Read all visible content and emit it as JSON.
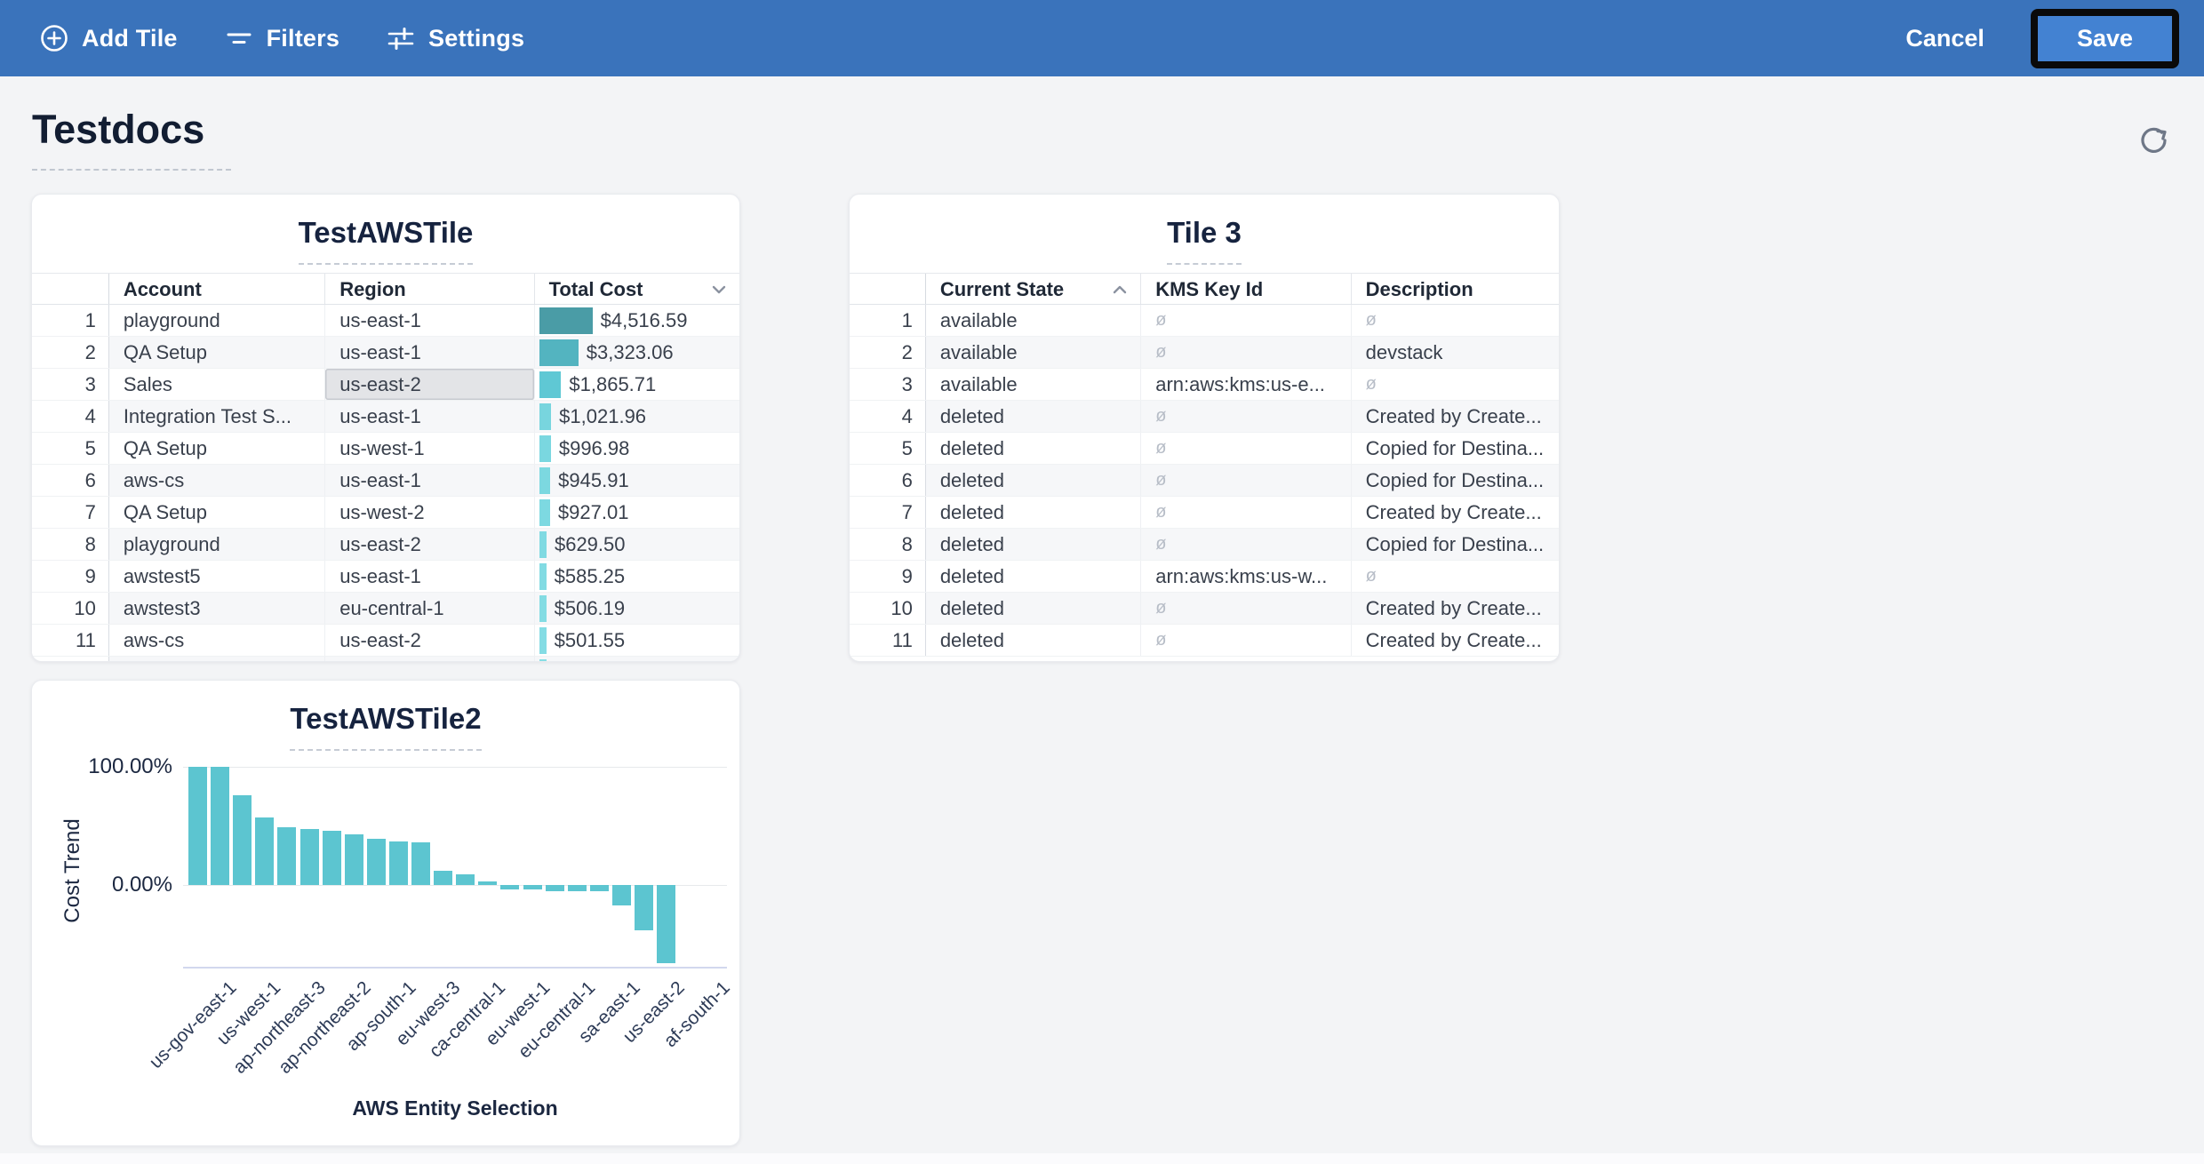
{
  "toolbar": {
    "add_tile": "Add Tile",
    "filters": "Filters",
    "settings": "Settings",
    "cancel": "Cancel",
    "save": "Save",
    "bg_color": "#3a73bb",
    "save_bg_color": "#4382d2"
  },
  "page": {
    "title": "Testdocs"
  },
  "tile1": {
    "title": "TestAWSTile",
    "columns": [
      "Account",
      "Region",
      "Total Cost"
    ],
    "sort": {
      "column": "Total Cost",
      "direction": "desc"
    },
    "selected_cell": {
      "row": 3,
      "column": "Region"
    },
    "rows": [
      {
        "n": "1",
        "account": "playground",
        "region": "us-east-1",
        "cost": "$4,516.59",
        "value": 4516.59,
        "bar_color": "#4a9ca6"
      },
      {
        "n": "2",
        "account": "QA Setup",
        "region": "us-east-1",
        "cost": "$3,323.06",
        "value": 3323.06,
        "bar_color": "#53b4c0"
      },
      {
        "n": "3",
        "account": "Sales",
        "region": "us-east-2",
        "cost": "$1,865.71",
        "value": 1865.71,
        "bar_color": "#5fc8d4"
      },
      {
        "n": "4",
        "account": "Integration Test S...",
        "region": "us-east-1",
        "cost": "$1,021.96",
        "value": 1021.96,
        "bar_color": "#78d5de"
      },
      {
        "n": "5",
        "account": "QA Setup",
        "region": "us-west-1",
        "cost": "$996.98",
        "value": 996.98,
        "bar_color": "#7ad7e0"
      },
      {
        "n": "6",
        "account": "aws-cs",
        "region": "us-east-1",
        "cost": "$945.91",
        "value": 945.91,
        "bar_color": "#7cd8e0"
      },
      {
        "n": "7",
        "account": "QA Setup",
        "region": "us-west-2",
        "cost": "$927.01",
        "value": 927.01,
        "bar_color": "#7dd9e1"
      },
      {
        "n": "8",
        "account": "playground",
        "region": "us-east-2",
        "cost": "$629.50",
        "value": 629.5,
        "bar_color": "#80dae2"
      },
      {
        "n": "9",
        "account": "awstest5",
        "region": "us-east-1",
        "cost": "$585.25",
        "value": 585.25,
        "bar_color": "#82dbe3"
      },
      {
        "n": "10",
        "account": "awstest3",
        "region": "eu-central-1",
        "cost": "$506.19",
        "value": 506.19,
        "bar_color": "#83dce3"
      },
      {
        "n": "11",
        "account": "aws-cs",
        "region": "us-east-2",
        "cost": "$501.55",
        "value": 501.55,
        "bar_color": "#84dce4"
      }
    ],
    "partial_row": {
      "bar_color": "#86dee5"
    }
  },
  "tile2": {
    "title": "Tile 3",
    "columns": [
      "Current State",
      "KMS Key Id",
      "Description"
    ],
    "sort": {
      "column": "Current State",
      "direction": "asc"
    },
    "null_symbol": "ø",
    "rows": [
      {
        "n": "1",
        "state": "available",
        "kms": null,
        "description": null
      },
      {
        "n": "2",
        "state": "available",
        "kms": null,
        "description": "devstack"
      },
      {
        "n": "3",
        "state": "available",
        "kms": "arn:aws:kms:us-e...",
        "description": null
      },
      {
        "n": "4",
        "state": "deleted",
        "kms": null,
        "description": "Created by Create..."
      },
      {
        "n": "5",
        "state": "deleted",
        "kms": null,
        "description": "Copied for Destina..."
      },
      {
        "n": "6",
        "state": "deleted",
        "kms": null,
        "description": "Copied for Destina..."
      },
      {
        "n": "7",
        "state": "deleted",
        "kms": null,
        "description": "Created by Create..."
      },
      {
        "n": "8",
        "state": "deleted",
        "kms": null,
        "description": "Copied for Destina..."
      },
      {
        "n": "9",
        "state": "deleted",
        "kms": "arn:aws:kms:us-w...",
        "description": null
      },
      {
        "n": "10",
        "state": "deleted",
        "kms": null,
        "description": "Created by Create..."
      },
      {
        "n": "11",
        "state": "deleted",
        "kms": null,
        "description": "Created by Create..."
      }
    ]
  },
  "chart_data": {
    "type": "bar",
    "title": "TestAWSTile2",
    "xlabel": "AWS Entity Selection",
    "ylabel": "Cost Trend",
    "y_ticks": [
      "100.00%",
      "0.00%"
    ],
    "ylim": [
      -70,
      100
    ],
    "grid": true,
    "bar_color": "#5cc5d0",
    "x_tick_labels": [
      "us-gov-east-1",
      "us-west-1",
      "ap-northeast-3",
      "ap-northeast-2",
      "ap-south-1",
      "eu-west-3",
      "ca-central-1",
      "eu-west-1",
      "eu-central-1",
      "sa-east-1",
      "us-east-2",
      "af-south-1"
    ],
    "values": [
      100,
      100,
      76,
      57,
      49,
      47,
      46,
      43,
      39,
      37,
      36,
      12,
      9,
      3,
      -4,
      -4,
      -5,
      -5,
      -5,
      -17,
      -38,
      -66
    ]
  }
}
